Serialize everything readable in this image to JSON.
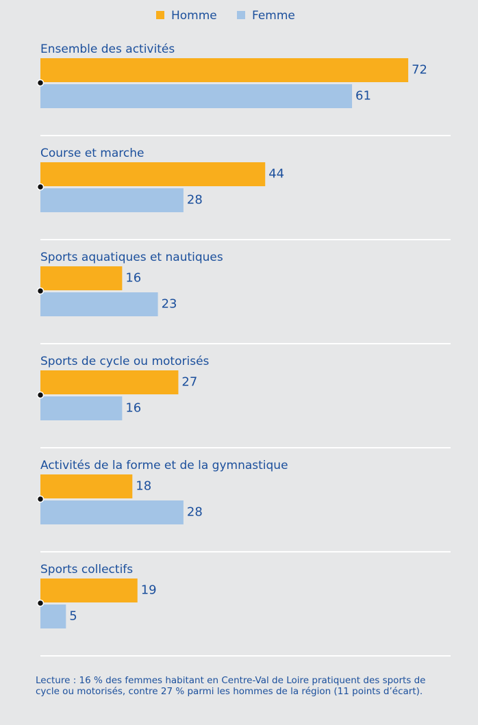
{
  "chart_data": {
    "type": "bar",
    "orientation": "horizontal",
    "categories": [
      "Ensemble des activités",
      "Course et marche",
      "Sports aquatiques et nautiques",
      "Sports de cycle ou motorisés",
      "Activités de la forme et de la gymnastique",
      "Sports collectifs"
    ],
    "series": [
      {
        "name": "Homme",
        "color": "#f9ae1c",
        "values": [
          72,
          44,
          16,
          27,
          18,
          19
        ]
      },
      {
        "name": "Femme",
        "color": "#a3c4e6",
        "values": [
          61,
          28,
          23,
          16,
          28,
          5
        ]
      }
    ],
    "note": "Lecture : 16 % des femmes habitant en Centre-Val de Loire pratiquent des sports de cycle ou motorisés, contre 27 % parmi les hommes de la région (11 points d’écart)."
  }
}
